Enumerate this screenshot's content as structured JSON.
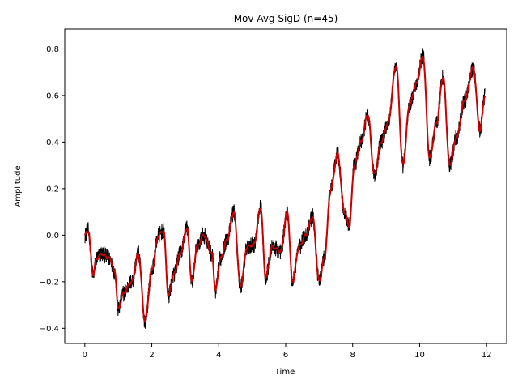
{
  "chart_data": {
    "type": "line",
    "title": "Mov Avg SigD (n=45)",
    "xlabel": "Time",
    "ylabel": "Amplitude",
    "xlim": [
      -0.6,
      12.6
    ],
    "ylim": [
      -0.465,
      0.885
    ],
    "xticks": [
      0,
      2,
      4,
      6,
      8,
      10,
      12
    ],
    "yticks": [
      -0.4,
      -0.2,
      0.0,
      0.2,
      0.4,
      0.6,
      0.8
    ],
    "xtick_labels": [
      "0",
      "2",
      "4",
      "6",
      "8",
      "10",
      "12"
    ],
    "ytick_labels": [
      "−0.4",
      "−0.2",
      "0.0",
      "0.2",
      "0.4",
      "0.6",
      "0.8"
    ],
    "grid": false,
    "legend": "none",
    "series": [
      {
        "role": "raw signal",
        "color": "#000000",
        "noise_amplitude": 0.035,
        "x": [
          0.0,
          0.1,
          0.25,
          0.35,
          0.5,
          0.75,
          0.9,
          1.0,
          1.15,
          1.4,
          1.6,
          1.8,
          2.0,
          2.2,
          2.35,
          2.5,
          2.65,
          2.85,
          3.05,
          3.2,
          3.35,
          3.55,
          3.8,
          3.9,
          4.05,
          4.25,
          4.45,
          4.65,
          4.85,
          5.05,
          5.25,
          5.4,
          5.6,
          5.85,
          6.05,
          6.2,
          6.4,
          6.6,
          6.8,
          7.0,
          7.15,
          7.35,
          7.55,
          7.75,
          7.9,
          8.05,
          8.25,
          8.45,
          8.65,
          8.85,
          9.05,
          9.3,
          9.5,
          9.7,
          9.9,
          10.1,
          10.3,
          10.5,
          10.7,
          10.9,
          11.1,
          11.35,
          11.6,
          11.8,
          11.95
        ],
        "y": [
          0.0,
          0.02,
          -0.17,
          -0.1,
          -0.08,
          -0.1,
          -0.16,
          -0.32,
          -0.25,
          -0.2,
          -0.08,
          -0.37,
          -0.15,
          0.0,
          0.02,
          -0.26,
          -0.17,
          -0.08,
          0.03,
          -0.2,
          -0.05,
          0.0,
          -0.08,
          -0.24,
          -0.1,
          -0.02,
          0.1,
          -0.22,
          -0.05,
          -0.04,
          0.12,
          -0.18,
          -0.05,
          -0.07,
          0.1,
          -0.2,
          -0.05,
          0.0,
          0.08,
          -0.2,
          -0.1,
          0.2,
          0.35,
          0.1,
          0.04,
          0.3,
          0.4,
          0.52,
          0.26,
          0.4,
          0.48,
          0.73,
          0.3,
          0.56,
          0.65,
          0.77,
          0.33,
          0.48,
          0.68,
          0.3,
          0.42,
          0.58,
          0.72,
          0.45,
          0.6
        ]
      },
      {
        "role": "moving average (n=45)",
        "color": "#cc0000",
        "x": [
          0.0,
          0.1,
          0.25,
          0.35,
          0.5,
          0.75,
          0.9,
          1.0,
          1.15,
          1.4,
          1.6,
          1.8,
          2.0,
          2.2,
          2.35,
          2.5,
          2.65,
          2.85,
          3.05,
          3.2,
          3.35,
          3.55,
          3.8,
          3.9,
          4.05,
          4.25,
          4.45,
          4.65,
          4.85,
          5.05,
          5.25,
          5.4,
          5.6,
          5.85,
          6.05,
          6.2,
          6.4,
          6.6,
          6.8,
          7.0,
          7.15,
          7.35,
          7.55,
          7.75,
          7.9,
          8.05,
          8.25,
          8.45,
          8.65,
          8.85,
          9.05,
          9.3,
          9.5,
          9.7,
          9.9,
          10.1,
          10.3,
          10.5,
          10.7,
          10.9,
          11.1,
          11.35,
          11.6,
          11.8,
          11.95
        ],
        "y": [
          0.0,
          0.02,
          -0.17,
          -0.1,
          -0.08,
          -0.1,
          -0.16,
          -0.32,
          -0.25,
          -0.2,
          -0.08,
          -0.37,
          -0.15,
          0.0,
          0.02,
          -0.26,
          -0.17,
          -0.08,
          0.03,
          -0.2,
          -0.05,
          0.0,
          -0.08,
          -0.24,
          -0.1,
          -0.02,
          0.1,
          -0.22,
          -0.05,
          -0.04,
          0.12,
          -0.18,
          -0.05,
          -0.07,
          0.1,
          -0.2,
          -0.05,
          0.0,
          0.08,
          -0.2,
          -0.1,
          0.2,
          0.35,
          0.1,
          0.04,
          0.3,
          0.4,
          0.52,
          0.26,
          0.4,
          0.48,
          0.73,
          0.3,
          0.56,
          0.65,
          0.77,
          0.33,
          0.48,
          0.68,
          0.3,
          0.42,
          0.58,
          0.72,
          0.45,
          0.6
        ]
      }
    ]
  }
}
